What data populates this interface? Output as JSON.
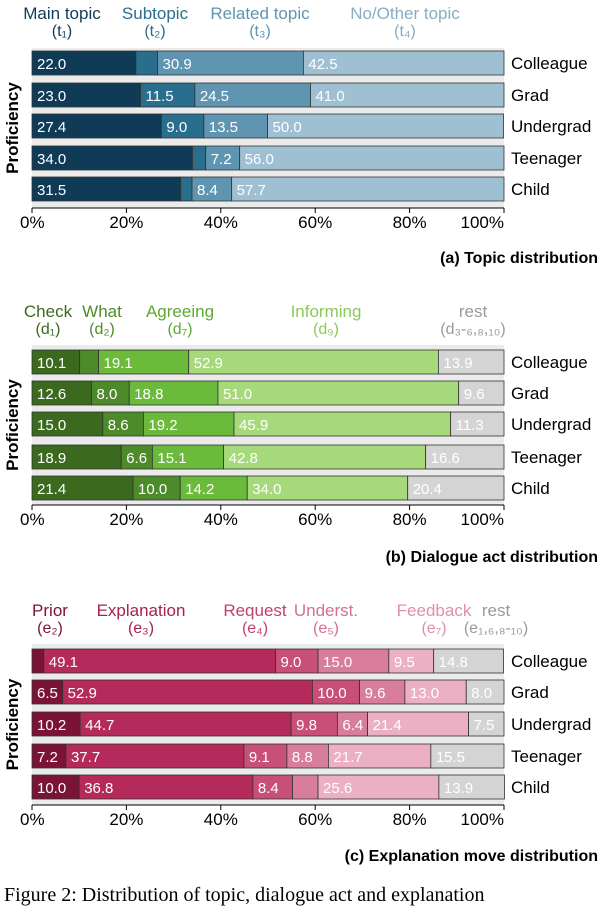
{
  "charts": [
    {
      "type": "bar",
      "orientation": "horizontal-stacked",
      "ylabel": "Proficiency",
      "xlim": [
        0,
        100
      ],
      "tick_labels": [
        "0%",
        "20%",
        "40%",
        "60%",
        "80%",
        "100%"
      ],
      "categories": [
        "Colleague",
        "Grad",
        "Undergrad",
        "Teenager",
        "Child"
      ],
      "caption": "(a) Topic distribution",
      "grid": false,
      "legend": "top",
      "series": [
        {
          "name": "Main topic",
          "code": "(t₁)",
          "color": "#0f3b56",
          "label_color": "#0f3b56",
          "values": [
            22.0,
            23.0,
            27.4,
            34.0,
            31.5
          ],
          "labels": [
            "22.0",
            "23.0",
            "27.4",
            "34.0",
            "31.5"
          ]
        },
        {
          "name": "Subtopic",
          "code": "(t₂)",
          "color": "#2a6e8e",
          "label_color": "#2a6e8e",
          "values": [
            4.6,
            11.5,
            9.0,
            2.8,
            2.4
          ],
          "labels": [
            "",
            "11.5",
            "9.0",
            "",
            ""
          ]
        },
        {
          "name": "Related topic",
          "code": "(t₃)",
          "color": "#5f95b0",
          "label_color": "#5f95b0",
          "values": [
            30.9,
            24.5,
            13.5,
            7.2,
            8.4
          ],
          "labels": [
            "30.9",
            "24.5",
            "13.5",
            "7.2",
            "8.4"
          ]
        },
        {
          "name": "No/Other topic",
          "code": "(t₄)",
          "color": "#9fc0d2",
          "label_color": "#88adc2",
          "values": [
            42.5,
            41.0,
            50.0,
            56.0,
            57.7
          ],
          "labels": [
            "42.5",
            "41.0",
            "50.0",
            "56.0",
            "57.7"
          ]
        }
      ]
    },
    {
      "type": "bar",
      "orientation": "horizontal-stacked",
      "ylabel": "Proficiency",
      "xlim": [
        0,
        100
      ],
      "tick_labels": [
        "0%",
        "20%",
        "40%",
        "60%",
        "80%",
        "100%"
      ],
      "categories": [
        "Colleague",
        "Grad",
        "Undergrad",
        "Teenager",
        "Child"
      ],
      "caption": "(b) Dialogue act distribution",
      "grid": false,
      "legend": "top",
      "series": [
        {
          "name": "Check",
          "code": "(d₁)",
          "color": "#3b6a1f",
          "label_color": "#3b6a1f",
          "values": [
            10.1,
            12.6,
            15.0,
            18.9,
            21.4
          ],
          "labels": [
            "10.1",
            "12.6",
            "15.0",
            "18.9",
            "21.4"
          ]
        },
        {
          "name": "What",
          "code": "(d₂)",
          "color": "#4d8b2a",
          "label_color": "#4d8b2a",
          "values": [
            4.0,
            8.0,
            8.6,
            6.6,
            10.0
          ],
          "labels": [
            "",
            "8.0",
            "8.6",
            "6.6",
            "10.0"
          ]
        },
        {
          "name": "Agreeing",
          "code": "(d₇)",
          "color": "#6cba3c",
          "label_color": "#5ea833",
          "values": [
            19.1,
            18.8,
            19.2,
            15.1,
            14.2
          ],
          "labels": [
            "19.1",
            "18.8",
            "19.2",
            "15.1",
            "14.2"
          ]
        },
        {
          "name": "Informing",
          "code": "(d₉)",
          "color": "#a6d97a",
          "label_color": "#8cc95a",
          "values": [
            52.9,
            51.0,
            45.9,
            42.8,
            34.0
          ],
          "labels": [
            "52.9",
            "51.0",
            "45.9",
            "42.8",
            "34.0"
          ]
        },
        {
          "name": "rest",
          "code": "(d₃-₆,₈,₁₀)",
          "color": "#d4d4d4",
          "label_color": "#9a9a9a",
          "values": [
            13.9,
            9.6,
            11.3,
            16.6,
            20.4
          ],
          "labels": [
            "13.9",
            "9.6",
            "11.3",
            "16.6",
            "20.4"
          ]
        }
      ]
    },
    {
      "type": "bar",
      "orientation": "horizontal-stacked",
      "ylabel": "Proficiency",
      "xlim": [
        0,
        100
      ],
      "tick_labels": [
        "0%",
        "20%",
        "40%",
        "60%",
        "80%",
        "100%"
      ],
      "categories": [
        "Colleague",
        "Grad",
        "Undergrad",
        "Teenager",
        "Child"
      ],
      "caption": "(c) Explanation move distribution",
      "grid": false,
      "legend": "top",
      "series": [
        {
          "name": "Prior",
          "code": "(e₂)",
          "color": "#7a1335",
          "label_color": "#7a1335",
          "values": [
            2.5,
            6.5,
            10.2,
            7.2,
            10.0
          ],
          "labels": [
            "",
            "6.5",
            "10.2",
            "7.2",
            "10.0"
          ]
        },
        {
          "name": "Explanation",
          "code": "(e₃)",
          "color": "#b42a5a",
          "label_color": "#a52350",
          "values": [
            49.1,
            52.9,
            44.7,
            37.7,
            36.8
          ],
          "labels": [
            "49.1",
            "52.9",
            "44.7",
            "37.7",
            "36.8"
          ]
        },
        {
          "name": "Request",
          "code": "(e₄)",
          "color": "#c84f78",
          "label_color": "#c2416c",
          "values": [
            9.0,
            10.0,
            9.8,
            9.1,
            8.4
          ],
          "labels": [
            "9.0",
            "10.0",
            "9.8",
            "9.1",
            "8.4"
          ]
        },
        {
          "name": "Underst.",
          "code": "(e₅)",
          "color": "#d87d9b",
          "label_color": "#d46f91",
          "values": [
            15.0,
            9.6,
            6.4,
            8.8,
            5.4
          ],
          "labels": [
            "15.0",
            "9.6",
            "6.4",
            "8.8",
            ""
          ]
        },
        {
          "name": "Feedback",
          "code": "(e₇)",
          "color": "#ebb0c4",
          "label_color": "#e08fac",
          "values": [
            9.5,
            13.0,
            21.4,
            21.7,
            25.6
          ],
          "labels": [
            "9.5",
            "13.0",
            "21.4",
            "21.7",
            "25.6"
          ]
        },
        {
          "name": "rest",
          "code": "(e₁,₆,₈-₁₀)",
          "color": "#d4d4d4",
          "label_color": "#9a9a9a",
          "values": [
            14.8,
            8.0,
            7.5,
            15.5,
            13.9
          ],
          "labels": [
            "14.8",
            "8.0",
            "7.5",
            "15.5",
            "13.9"
          ]
        }
      ]
    }
  ],
  "figure_caption": "Figure 2: Distribution of topic, dialogue act and explanation"
}
